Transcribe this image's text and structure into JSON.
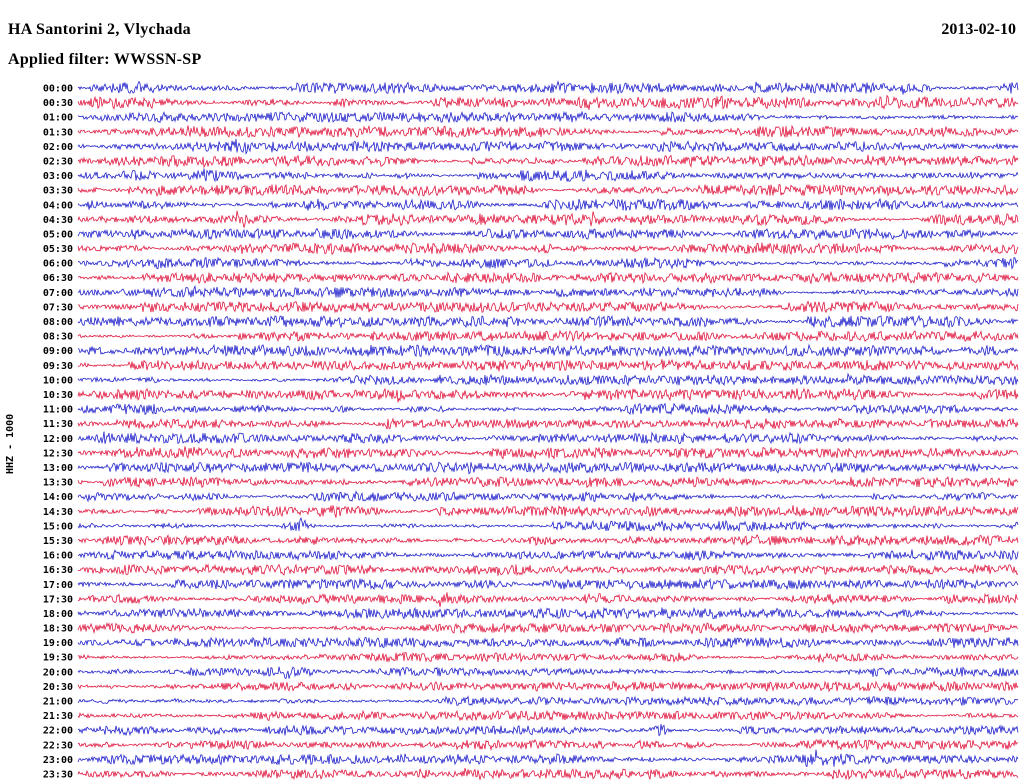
{
  "header": {
    "station": "HA Santorini 2, Vlychada",
    "filter": "Applied filter: WWSSN-SP",
    "date": "2013-02-10"
  },
  "axis": {
    "left_label": "HHZ - 1000"
  },
  "chart_data": {
    "type": "line",
    "title": "HA Santorini 2, Vlychada",
    "subtitle": "Applied filter: WWSSN-SP",
    "date": "2013-02-10",
    "channel": "HHZ",
    "scale": 1000,
    "row_interval_minutes": 30,
    "row_span_minutes": 30,
    "description": "24-hour helicorder seismogram; 48 half-hour traces of continuous noise-like ground motion with intermittent bursts; colors alternate per row",
    "colors": {
      "blue": "#2222cc",
      "red": "#e01840"
    },
    "rows": [
      {
        "time": "00:00",
        "color": "blue",
        "seed": 101,
        "amp": 2.4,
        "bursts": []
      },
      {
        "time": "00:30",
        "color": "red",
        "seed": 108,
        "amp": 2.6,
        "bursts": [
          {
            "p": 0.28,
            "w": 10,
            "a": 4
          },
          {
            "p": 0.55,
            "w": 9,
            "a": 3
          }
        ]
      },
      {
        "time": "01:00",
        "color": "blue",
        "seed": 115,
        "amp": 2.2,
        "bursts": []
      },
      {
        "time": "01:30",
        "color": "red",
        "seed": 122,
        "amp": 2.4,
        "bursts": []
      },
      {
        "time": "02:00",
        "color": "blue",
        "seed": 129,
        "amp": 2.2,
        "bursts": [
          {
            "p": 0.17,
            "w": 10,
            "a": 5
          }
        ]
      },
      {
        "time": "02:30",
        "color": "red",
        "seed": 136,
        "amp": 2.3,
        "bursts": []
      },
      {
        "time": "03:00",
        "color": "blue",
        "seed": 143,
        "amp": 2.6,
        "bursts": [
          {
            "p": 0.06,
            "w": 14,
            "a": 4
          }
        ]
      },
      {
        "time": "03:30",
        "color": "red",
        "seed": 150,
        "amp": 2.4,
        "bursts": []
      },
      {
        "time": "04:00",
        "color": "blue",
        "seed": 157,
        "amp": 2.5,
        "bursts": []
      },
      {
        "time": "04:30",
        "color": "red",
        "seed": 164,
        "amp": 2.6,
        "bursts": [
          {
            "p": 0.17,
            "w": 12,
            "a": 7
          },
          {
            "p": 0.55,
            "w": 9,
            "a": 4
          }
        ]
      },
      {
        "time": "05:00",
        "color": "blue",
        "seed": 171,
        "amp": 2.3,
        "bursts": []
      },
      {
        "time": "05:30",
        "color": "red",
        "seed": 178,
        "amp": 2.5,
        "bursts": [
          {
            "p": 0.5,
            "w": 10,
            "a": 5
          }
        ]
      },
      {
        "time": "06:00",
        "color": "blue",
        "seed": 185,
        "amp": 2.4,
        "bursts": []
      },
      {
        "time": "06:30",
        "color": "red",
        "seed": 192,
        "amp": 2.3,
        "bursts": []
      },
      {
        "time": "07:00",
        "color": "blue",
        "seed": 199,
        "amp": 2.2,
        "bursts": []
      },
      {
        "time": "07:30",
        "color": "red",
        "seed": 206,
        "amp": 2.3,
        "bursts": []
      },
      {
        "time": "08:00",
        "color": "blue",
        "seed": 213,
        "amp": 2.4,
        "bursts": [
          {
            "p": 0.46,
            "w": 10,
            "a": 6
          }
        ]
      },
      {
        "time": "08:30",
        "color": "red",
        "seed": 220,
        "amp": 2.2,
        "bursts": []
      },
      {
        "time": "09:00",
        "color": "blue",
        "seed": 227,
        "amp": 2.5,
        "bursts": [
          {
            "p": 0.97,
            "w": 16,
            "a": 5
          }
        ]
      },
      {
        "time": "09:30",
        "color": "red",
        "seed": 234,
        "amp": 2.2,
        "bursts": []
      },
      {
        "time": "10:00",
        "color": "blue",
        "seed": 241,
        "amp": 2.2,
        "bursts": []
      },
      {
        "time": "10:30",
        "color": "red",
        "seed": 248,
        "amp": 2.4,
        "bursts": [
          {
            "p": 0.33,
            "w": 10,
            "a": 6
          }
        ]
      },
      {
        "time": "11:00",
        "color": "blue",
        "seed": 255,
        "amp": 2.3,
        "bursts": []
      },
      {
        "time": "11:30",
        "color": "red",
        "seed": 262,
        "amp": 2.2,
        "bursts": []
      },
      {
        "time": "12:00",
        "color": "blue",
        "seed": 269,
        "amp": 2.3,
        "bursts": [
          {
            "p": 0.035,
            "w": 8,
            "a": 8
          }
        ]
      },
      {
        "time": "12:30",
        "color": "red",
        "seed": 276,
        "amp": 2.3,
        "bursts": [
          {
            "p": 0.11,
            "w": 10,
            "a": 6
          }
        ]
      },
      {
        "time": "13:00",
        "color": "blue",
        "seed": 283,
        "amp": 2.2,
        "bursts": [
          {
            "p": 0.42,
            "w": 9,
            "a": 6
          }
        ]
      },
      {
        "time": "13:30",
        "color": "red",
        "seed": 290,
        "amp": 2.2,
        "bursts": []
      },
      {
        "time": "14:00",
        "color": "blue",
        "seed": 297,
        "amp": 2.1,
        "bursts": []
      },
      {
        "time": "14:30",
        "color": "red",
        "seed": 304,
        "amp": 2.2,
        "bursts": [
          {
            "p": 0.27,
            "w": 9,
            "a": 4
          }
        ]
      },
      {
        "time": "15:00",
        "color": "blue",
        "seed": 311,
        "amp": 2.3,
        "bursts": [
          {
            "p": 0.235,
            "w": 11,
            "a": 9
          }
        ]
      },
      {
        "time": "15:30",
        "color": "red",
        "seed": 318,
        "amp": 2.2,
        "bursts": []
      },
      {
        "time": "16:00",
        "color": "blue",
        "seed": 325,
        "amp": 2.2,
        "bursts": []
      },
      {
        "time": "16:30",
        "color": "red",
        "seed": 332,
        "amp": 2.2,
        "bursts": [
          {
            "p": 0.3,
            "w": 9,
            "a": 4
          }
        ]
      },
      {
        "time": "17:00",
        "color": "blue",
        "seed": 339,
        "amp": 2.1,
        "bursts": []
      },
      {
        "time": "17:30",
        "color": "red",
        "seed": 346,
        "amp": 2.2,
        "bursts": [
          {
            "p": 0.385,
            "w": 10,
            "a": 7
          }
        ]
      },
      {
        "time": "18:00",
        "color": "blue",
        "seed": 353,
        "amp": 2.2,
        "bursts": []
      },
      {
        "time": "18:30",
        "color": "red",
        "seed": 360,
        "amp": 2.1,
        "bursts": []
      },
      {
        "time": "19:00",
        "color": "blue",
        "seed": 367,
        "amp": 2.2,
        "bursts": []
      },
      {
        "time": "19:30",
        "color": "red",
        "seed": 374,
        "amp": 2.0,
        "bursts": []
      },
      {
        "time": "20:00",
        "color": "blue",
        "seed": 381,
        "amp": 2.0,
        "bursts": [
          {
            "p": 0.22,
            "w": 9,
            "a": 4
          }
        ]
      },
      {
        "time": "20:30",
        "color": "red",
        "seed": 388,
        "amp": 2.0,
        "bursts": []
      },
      {
        "time": "21:00",
        "color": "blue",
        "seed": 395,
        "amp": 2.0,
        "bursts": []
      },
      {
        "time": "21:30",
        "color": "red",
        "seed": 402,
        "amp": 2.0,
        "bursts": []
      },
      {
        "time": "22:00",
        "color": "blue",
        "seed": 409,
        "amp": 2.2,
        "bursts": [
          {
            "p": 0.62,
            "w": 10,
            "a": 8
          }
        ]
      },
      {
        "time": "22:30",
        "color": "red",
        "seed": 416,
        "amp": 2.1,
        "bursts": []
      },
      {
        "time": "23:00",
        "color": "blue",
        "seed": 423,
        "amp": 2.3,
        "bursts": [
          {
            "p": 0.35,
            "w": 10,
            "a": 6
          },
          {
            "p": 0.79,
            "w": 14,
            "a": 7
          }
        ]
      },
      {
        "time": "23:30",
        "color": "red",
        "seed": 430,
        "amp": 2.2,
        "bursts": [
          {
            "p": 0.42,
            "w": 10,
            "a": 5
          }
        ]
      }
    ]
  }
}
